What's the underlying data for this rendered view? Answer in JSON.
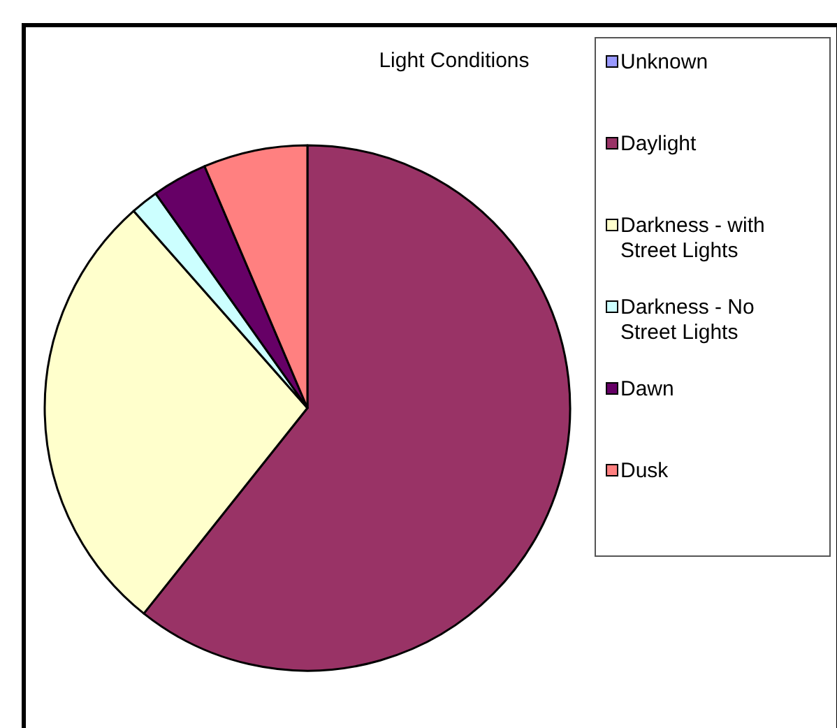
{
  "chart_data": {
    "type": "pie",
    "title": "Light Conditions",
    "categories": [
      "Unknown",
      "Daylight",
      "Darkness - with Street Lights",
      "Darkness - No Street Lights",
      "Dawn",
      "Dusk"
    ],
    "values": [
      0,
      60.7,
      27.8,
      1.7,
      3.4,
      6.4
    ],
    "colors": [
      "#9999ff",
      "#993366",
      "#ffffcc",
      "#ccffff",
      "#660066",
      "#ff8080"
    ],
    "legend": "right"
  }
}
